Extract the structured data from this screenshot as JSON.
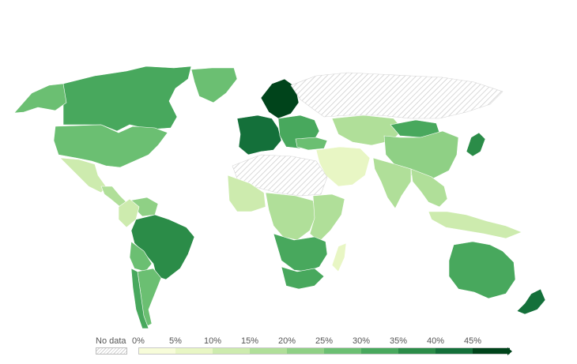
{
  "legend": {
    "no_data_label": "No data",
    "ticks": [
      "0%",
      "5%",
      "10%",
      "15%",
      "20%",
      "25%",
      "30%",
      "35%",
      "40%",
      "45%"
    ],
    "bin_colors": [
      "#f7fcd9",
      "#e8f6c4",
      "#cdebae",
      "#b0df99",
      "#8fd085",
      "#6bbf72",
      "#48a85d",
      "#2b8c48",
      "#14703a",
      "#00441b"
    ],
    "no_data_fill": "#e6e6e6"
  },
  "regions": [
    {
      "name": "Canada",
      "value": 33
    },
    {
      "name": "United States",
      "value": 27
    },
    {
      "name": "Greenland",
      "value": 27
    },
    {
      "name": "Alaska",
      "value": 27
    },
    {
      "name": "Mexico",
      "value": 12
    },
    {
      "name": "Central America",
      "value": 18
    },
    {
      "name": "Venezuela",
      "value": 22
    },
    {
      "name": "Colombia",
      "value": 14
    },
    {
      "name": "Brazil",
      "value": 37
    },
    {
      "name": "Bolivia",
      "value": 28
    },
    {
      "name": "Argentina",
      "value": 26
    },
    {
      "name": "Chile",
      "value": 30
    },
    {
      "name": "Western Europe",
      "value": 44
    },
    {
      "name": "Scandinavia",
      "value": 47
    },
    {
      "name": "Eastern Europe",
      "value": 33
    },
    {
      "name": "Turkey",
      "value": 26
    },
    {
      "name": "Russia",
      "value": null
    },
    {
      "name": "Central Asia",
      "value": 18
    },
    {
      "name": "Mongolia",
      "value": 33
    },
    {
      "name": "China",
      "value": 24
    },
    {
      "name": "India",
      "value": 17
    },
    {
      "name": "Southeast Asia",
      "value": 15
    },
    {
      "name": "Indonesia",
      "value": 13
    },
    {
      "name": "Japan",
      "value": 37
    },
    {
      "name": "Middle East",
      "value": 6
    },
    {
      "name": "Sahara",
      "value": null
    },
    {
      "name": "West Africa",
      "value": 10
    },
    {
      "name": "Central Africa",
      "value": 15
    },
    {
      "name": "East Africa",
      "value": 18
    },
    {
      "name": "Southern Africa",
      "value": 30
    },
    {
      "name": "South Africa",
      "value": 33
    },
    {
      "name": "Madagascar",
      "value": 9
    },
    {
      "name": "Australia",
      "value": 30
    },
    {
      "name": "New Zealand",
      "value": 40
    }
  ]
}
